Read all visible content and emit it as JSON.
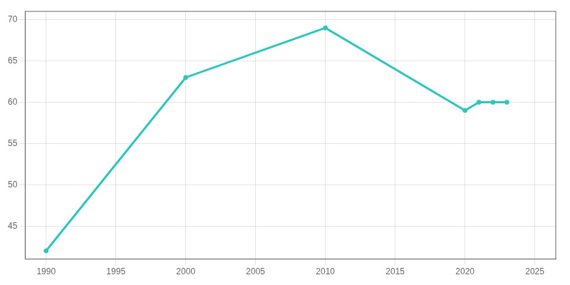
{
  "chart_data": {
    "type": "line",
    "x": [
      1990,
      2000,
      2010,
      2020,
      2021,
      2022,
      2023
    ],
    "values": [
      42,
      63,
      69,
      59,
      60,
      60,
      60
    ],
    "color": "#2DC5BE",
    "marker": "circle",
    "xlim": [
      1988.5,
      2026.5
    ],
    "xticks": [
      1990,
      1995,
      2000,
      2005,
      2010,
      2015,
      2020,
      2025
    ],
    "ylim": [
      41,
      71
    ],
    "yticks": [
      45,
      50,
      55,
      60,
      65,
      70
    ],
    "grid": true
  }
}
